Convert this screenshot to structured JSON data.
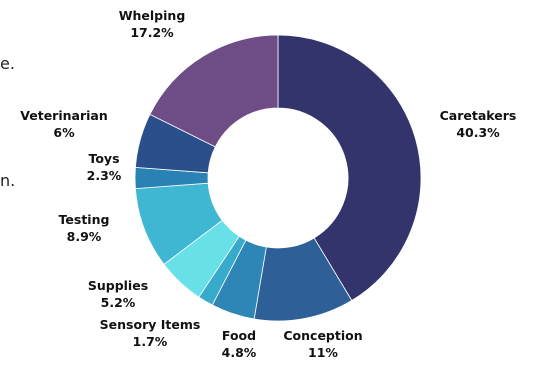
{
  "page_fragments": [
    "e.",
    "n."
  ],
  "chart_data": {
    "type": "pie",
    "subtype": "donut",
    "categories": [
      "Caretakers",
      "Conception",
      "Food",
      "Sensory Items",
      "Supplies",
      "Testing",
      "Toys",
      "Veterinarian",
      "Whelping"
    ],
    "values": [
      40.3,
      11,
      4.8,
      1.7,
      5.2,
      8.9,
      2.3,
      6,
      17.2
    ],
    "value_labels": [
      "40.3%",
      "11%",
      "4.8%",
      "1.7%",
      "5.2%",
      "8.9%",
      "2.3%",
      "6%",
      "17.2%"
    ],
    "colors": [
      "#32346b",
      "#2e5f96",
      "#2d86b6",
      "#38aacb",
      "#67e0e8",
      "#40b7d2",
      "#2a82b4",
      "#2a4f8a",
      "#28396e"
    ],
    "colors_note": "placeholder",
    "start_angle_deg": 0,
    "direction": "clockwise"
  }
}
